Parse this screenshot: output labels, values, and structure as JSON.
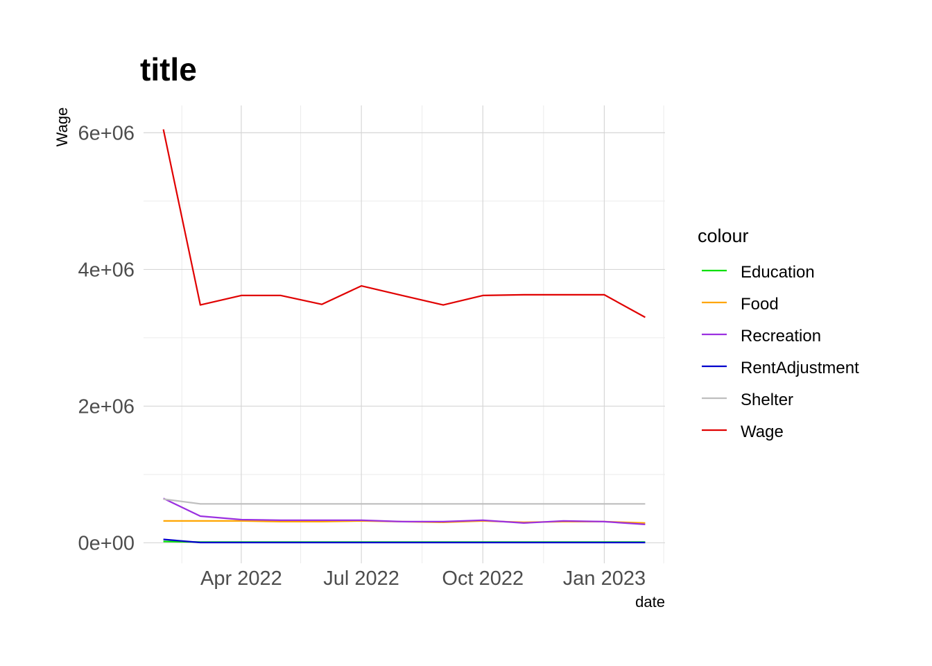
{
  "chart_data": {
    "type": "line",
    "title": "title",
    "xlabel": "date",
    "ylabel": "Wage",
    "x": [
      "2022-02-01",
      "2022-03-01",
      "2022-04-01",
      "2022-05-01",
      "2022-06-01",
      "2022-07-01",
      "2022-08-01",
      "2022-09-01",
      "2022-10-01",
      "2022-11-01",
      "2022-12-01",
      "2023-01-01",
      "2023-02-01"
    ],
    "xlim": [
      "2022-01-17",
      "2023-02-16"
    ],
    "ylim": [
      -300000,
      6400000
    ],
    "x_ticks": [
      {
        "date": "2022-04-01",
        "label": "Apr 2022"
      },
      {
        "date": "2022-07-01",
        "label": "Jul 2022"
      },
      {
        "date": "2022-10-01",
        "label": "Oct 2022"
      },
      {
        "date": "2023-01-01",
        "label": "Jan 2023"
      }
    ],
    "x_minor_ticks": [
      "2022-02-15",
      "2022-05-16",
      "2022-08-16",
      "2022-11-16",
      "2023-02-15"
    ],
    "y_ticks": [
      {
        "value": 0,
        "label": "0e+00"
      },
      {
        "value": 2000000,
        "label": "2e+06"
      },
      {
        "value": 4000000,
        "label": "4e+06"
      },
      {
        "value": 6000000,
        "label": "6e+06"
      }
    ],
    "y_minor_ticks": [
      1000000,
      3000000,
      5000000
    ],
    "grid": true,
    "legend": {
      "title": "colour",
      "position": "right"
    },
    "series": [
      {
        "name": "Education",
        "color": "#00e000",
        "values": [
          20000,
          12000,
          12000,
          12000,
          12000,
          12000,
          12000,
          12000,
          12000,
          12000,
          12000,
          12000,
          12000
        ]
      },
      {
        "name": "Food",
        "color": "#ffa500",
        "values": [
          320000,
          320000,
          320000,
          310000,
          310000,
          320000,
          310000,
          300000,
          320000,
          300000,
          310000,
          310000,
          290000
        ]
      },
      {
        "name": "Recreation",
        "color": "#9b30e0",
        "values": [
          650000,
          390000,
          340000,
          330000,
          330000,
          330000,
          310000,
          310000,
          330000,
          290000,
          320000,
          310000,
          270000
        ]
      },
      {
        "name": "RentAdjustment",
        "color": "#0000cc",
        "values": [
          50000,
          5000,
          5000,
          5000,
          5000,
          5000,
          5000,
          5000,
          5000,
          5000,
          5000,
          5000,
          5000
        ]
      },
      {
        "name": "Shelter",
        "color": "#bebebe",
        "values": [
          640000,
          570000,
          570000,
          570000,
          570000,
          570000,
          570000,
          570000,
          570000,
          570000,
          570000,
          570000,
          570000
        ]
      },
      {
        "name": "Wage",
        "color": "#e00000",
        "values": [
          6050000,
          3480000,
          3620000,
          3620000,
          3490000,
          3760000,
          3620000,
          3480000,
          3620000,
          3630000,
          3630000,
          3630000,
          3300000
        ]
      }
    ]
  }
}
